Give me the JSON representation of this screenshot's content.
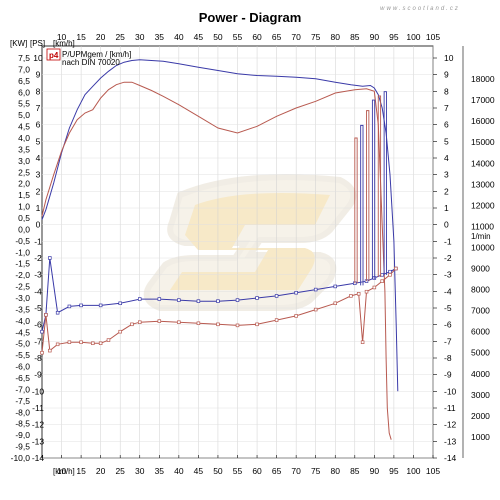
{
  "chart_data": {
    "type": "line",
    "title": "Power - Diagram",
    "watermark": "www.scootland.cz",
    "legend": {
      "badge": "p4",
      "line1": "P/UPMgem / [km/h]",
      "line2": "nach DIN 70020"
    },
    "x_label_top": "[km/h]",
    "x_label_bottom": "[km/h]",
    "y_left_units": "[KW]",
    "y_left2_units": "[PS]",
    "y_right_rpm_units": "1/min",
    "x_ticks": [
      "10",
      "15",
      "20",
      "25",
      "30",
      "35",
      "40",
      "45",
      "50",
      "55",
      "60",
      "65",
      "70",
      "75",
      "80",
      "85",
      "90",
      "95",
      "100",
      "105"
    ],
    "kw_ticks": [
      "7,5",
      "7,0",
      "6,5",
      "6,0",
      "5,5",
      "5,0",
      "4,5",
      "4,0",
      "3,5",
      "3,0",
      "2,5",
      "2,0",
      "1,5",
      "1,0",
      "0,5",
      "0,0",
      "-0,5",
      "-1,0",
      "-1,5",
      "-2,0",
      "-2,5",
      "-3,0",
      "-3,5",
      "-4,0",
      "-4,5",
      "-5,0",
      "-5,5",
      "-6,0",
      "-6,5",
      "-7,0",
      "-7,5",
      "-8,0",
      "-8,5",
      "-9,0",
      "-9,5",
      "-10,0"
    ],
    "ps_ticks": [
      "10",
      "9",
      "8",
      "7",
      "6",
      "5",
      "4",
      "3",
      "2",
      "1",
      "0",
      "-1",
      "-2",
      "-3",
      "-4",
      "-5",
      "-6",
      "-7",
      "-8",
      "-9",
      "-10",
      "-11",
      "-12",
      "-13",
      "-14"
    ],
    "right_ps_ticks": [
      "10",
      "9",
      "8",
      "7",
      "6",
      "5",
      "4",
      "3",
      "2",
      "1",
      "0",
      "-1",
      "-2",
      "-3",
      "-4",
      "-5",
      "-6",
      "-7",
      "-8",
      "-9",
      "-10",
      "-11",
      "-12",
      "-13",
      "-14"
    ],
    "rpm_ticks": [
      "18000",
      "17000",
      "16000",
      "15000",
      "14000",
      "13000",
      "12000",
      "11000",
      "10000",
      "9000",
      "8000",
      "7000",
      "6000",
      "5000",
      "4000",
      "3000",
      "2000",
      "1000"
    ],
    "xlim": [
      5,
      105
    ],
    "kw_ylim": [
      -10.0,
      7.5
    ],
    "ps_ylim": [
      -14,
      10
    ],
    "rpm_ylim": [
      0,
      19000
    ],
    "series": [
      {
        "name": "",
        "color": "#3a3aa8",
        "axis": "ps",
        "x": [
          5,
          6,
          8,
          10,
          12,
          14,
          16,
          18,
          20,
          22,
          24,
          26,
          28,
          30,
          33,
          36,
          40,
          45,
          50,
          55,
          60,
          65,
          70,
          75,
          80,
          84,
          87,
          89,
          90,
          91,
          92,
          93,
          94,
          95,
          95.6,
          96
        ],
        "y": [
          0.3,
          0.9,
          2.5,
          4.3,
          5.8,
          6.9,
          7.8,
          8.3,
          8.8,
          9.2,
          9.55,
          9.75,
          9.85,
          9.9,
          9.85,
          9.8,
          9.65,
          9.45,
          9.25,
          9.05,
          8.95,
          8.9,
          8.85,
          8.75,
          8.55,
          8.4,
          8.3,
          8.35,
          8.2,
          7.8,
          7.0,
          5.5,
          3.0,
          -1.0,
          -6.0,
          -10.0
        ]
      },
      {
        "name": "",
        "color": "#b85a50",
        "axis": "ps",
        "x": [
          5,
          6,
          8,
          10,
          12,
          14,
          16,
          18,
          20,
          22,
          24,
          26,
          28,
          30,
          33,
          36,
          40,
          45,
          50,
          55,
          60,
          65,
          70,
          75,
          80,
          85,
          88,
          90,
          91,
          92,
          92.7,
          93,
          93.3,
          93.8,
          94.3
        ],
        "y": [
          0.5,
          1.5,
          3.0,
          4.4,
          5.5,
          6.3,
          6.7,
          6.9,
          7.6,
          8.1,
          8.4,
          8.55,
          8.55,
          8.35,
          8.05,
          7.7,
          7.2,
          6.5,
          5.8,
          5.5,
          5.9,
          6.5,
          7.0,
          7.4,
          7.9,
          8.1,
          8.15,
          8.0,
          6.0,
          0.0,
          -4.0,
          -8.0,
          -11.0,
          -12.5,
          -12.9
        ]
      },
      {
        "name": "",
        "color": "#3a3aa8",
        "axis": "rpm",
        "markers": true,
        "x": [
          5,
          6,
          7,
          9,
          12,
          15,
          20,
          25,
          30,
          35,
          40,
          45,
          50,
          55,
          60,
          65,
          70,
          75,
          80,
          85,
          88,
          90,
          92,
          94,
          95.5
        ],
        "y": [
          6000,
          6800,
          9500,
          6900,
          7200,
          7250,
          7250,
          7350,
          7550,
          7550,
          7500,
          7450,
          7450,
          7500,
          7600,
          7700,
          7850,
          8000,
          8150,
          8300,
          8400,
          8550,
          8700,
          8850,
          9000
        ]
      },
      {
        "name": "",
        "color": "#b85a50",
        "axis": "rpm",
        "markers": true,
        "x": [
          5,
          6,
          7,
          9,
          12,
          15,
          18,
          20,
          22,
          25,
          28,
          30,
          35,
          40,
          45,
          50,
          55,
          60,
          65,
          70,
          75,
          80,
          84,
          86,
          87,
          88,
          90,
          92,
          94,
          95.5
        ],
        "y": [
          5000,
          6800,
          5100,
          5400,
          5500,
          5500,
          5450,
          5450,
          5600,
          6000,
          6350,
          6450,
          6500,
          6450,
          6400,
          6350,
          6300,
          6350,
          6550,
          6750,
          7050,
          7350,
          7700,
          7800,
          5500,
          7900,
          8100,
          8400,
          8700,
          9000
        ]
      }
    ]
  }
}
